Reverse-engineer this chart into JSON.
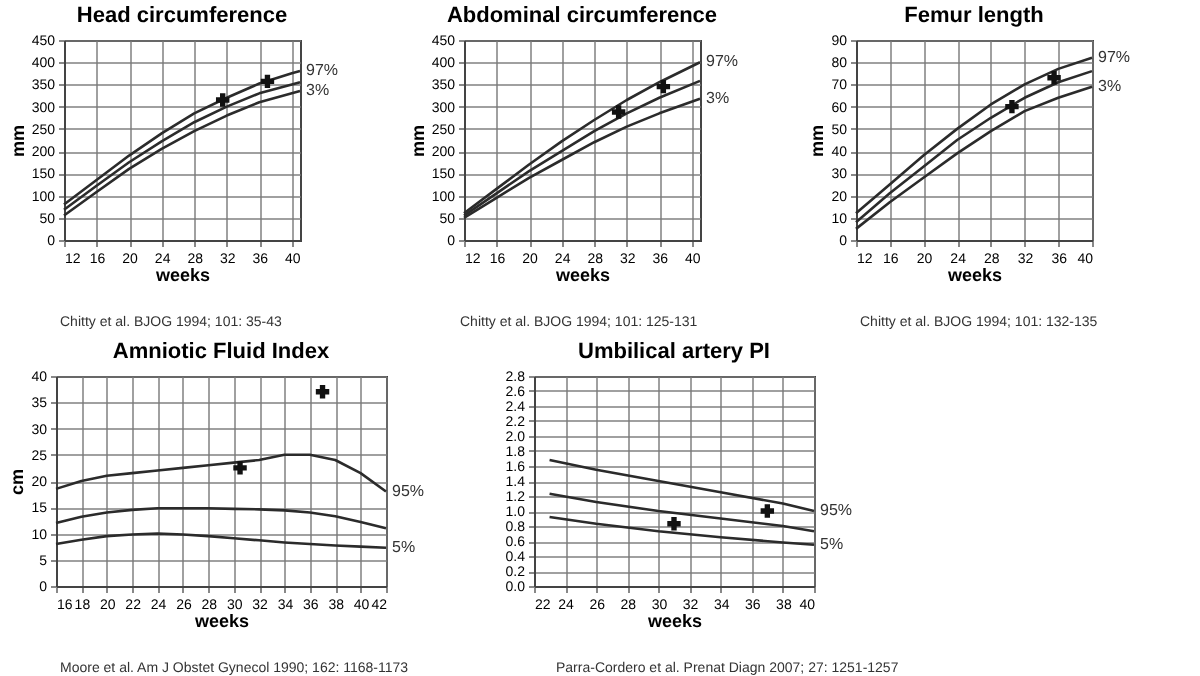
{
  "chart_data": [
    {
      "type": "line",
      "title": "Head circumference",
      "xlabel": "weeks",
      "ylabel": "mm",
      "xlim": [
        12,
        41
      ],
      "xticks": [
        12,
        16,
        20,
        24,
        28,
        32,
        36,
        40
      ],
      "ylim": [
        0,
        450
      ],
      "yticks": [
        0,
        50,
        100,
        150,
        200,
        250,
        300,
        350,
        400,
        450
      ],
      "grid": true,
      "annotations": [
        "Chitty et al. BJOG 1994; 101: 35-43"
      ],
      "series": [
        {
          "name": "97%",
          "color": "#2b2b2b",
          "x": [
            12,
            16,
            20,
            24,
            28,
            32,
            36,
            40,
            41
          ],
          "values": [
            80,
            135,
            190,
            240,
            285,
            320,
            352,
            375,
            380
          ]
        },
        {
          "color": "#2b2b2b",
          "x": [
            12,
            16,
            20,
            24,
            28,
            32,
            36,
            40,
            41
          ],
          "values": [
            68,
            122,
            175,
            222,
            265,
            300,
            330,
            350,
            355
          ]
        },
        {
          "name": "3%",
          "color": "#2b2b2b",
          "x": [
            12,
            16,
            20,
            24,
            28,
            32,
            36,
            40,
            41
          ],
          "values": [
            55,
            108,
            160,
            205,
            245,
            280,
            310,
            330,
            335
          ]
        },
        {
          "type": "scatter",
          "marker": "cross",
          "color": "#111111",
          "x": [
            31.5,
            37
          ],
          "values": [
            315,
            357
          ]
        }
      ]
    },
    {
      "type": "line",
      "title": "Abdominal circumference",
      "xlabel": "weeks",
      "ylabel": "mm",
      "xlim": [
        12,
        41
      ],
      "xticks": [
        12,
        16,
        20,
        24,
        28,
        32,
        36,
        40
      ],
      "ylim": [
        0,
        450
      ],
      "yticks": [
        0,
        50,
        100,
        150,
        200,
        250,
        300,
        350,
        400,
        450
      ],
      "grid": true,
      "annotations": [
        "Chitty et al. BJOG 1994; 101: 125-131"
      ],
      "series": [
        {
          "name": "97%",
          "color": "#2b2b2b",
          "x": [
            12,
            16,
            20,
            24,
            28,
            32,
            36,
            41
          ],
          "values": [
            60,
            115,
            170,
            222,
            270,
            315,
            355,
            400
          ]
        },
        {
          "color": "#2b2b2b",
          "x": [
            12,
            16,
            20,
            24,
            28,
            32,
            36,
            41
          ],
          "values": [
            55,
            105,
            155,
            200,
            245,
            285,
            320,
            358
          ]
        },
        {
          "name": "3%",
          "color": "#2b2b2b",
          "x": [
            12,
            16,
            20,
            24,
            28,
            32,
            36,
            41
          ],
          "values": [
            50,
            95,
            140,
            180,
            220,
            255,
            285,
            318
          ]
        },
        {
          "type": "scatter",
          "marker": "cross",
          "color": "#111111",
          "x": [
            31,
            36.5
          ],
          "values": [
            288,
            345
          ]
        }
      ]
    },
    {
      "type": "line",
      "title": "Femur length",
      "xlabel": "weeks",
      "ylabel": "mm",
      "xlim": [
        12,
        40
      ],
      "xticks": [
        12,
        16,
        20,
        24,
        28,
        32,
        36,
        40
      ],
      "ylim": [
        0,
        90
      ],
      "yticks": [
        0,
        10,
        20,
        30,
        40,
        50,
        60,
        70,
        80,
        90
      ],
      "grid": true,
      "annotations": [
        "Chitty et al. BJOG 1994; 101: 132-135"
      ],
      "series": [
        {
          "name": "97%",
          "color": "#2b2b2b",
          "x": [
            12,
            16,
            20,
            24,
            28,
            32,
            36,
            40
          ],
          "values": [
            12,
            25,
            38,
            50,
            61,
            70,
            77,
            82
          ]
        },
        {
          "color": "#2b2b2b",
          "x": [
            12,
            16,
            20,
            24,
            28,
            32,
            36,
            40
          ],
          "values": [
            8,
            21,
            33,
            45,
            55,
            64,
            71,
            76
          ]
        },
        {
          "name": "3%",
          "color": "#2b2b2b",
          "x": [
            12,
            16,
            20,
            24,
            28,
            32,
            36,
            40
          ],
          "values": [
            5,
            17,
            28,
            39,
            49,
            58,
            64,
            69
          ]
        },
        {
          "type": "scatter",
          "marker": "cross",
          "color": "#111111",
          "x": [
            30.5,
            35.5
          ],
          "values": [
            60,
            73
          ]
        }
      ]
    },
    {
      "type": "line",
      "title": "Amniotic Fluid Index",
      "xlabel": "weeks",
      "ylabel": "cm",
      "xlim": [
        16,
        42
      ],
      "xticks": [
        16,
        18,
        20,
        22,
        24,
        26,
        28,
        30,
        32,
        34,
        36,
        38,
        40,
        42
      ],
      "ylim": [
        0,
        40
      ],
      "yticks": [
        0,
        5,
        10,
        15,
        20,
        25,
        30,
        35,
        40
      ],
      "grid": true,
      "annotations": [
        "Moore et al. Am J Obstet Gynecol 1990; 162: 1168-1173"
      ],
      "series": [
        {
          "name": "95%",
          "color": "#2b2b2b",
          "x": [
            16,
            18,
            20,
            22,
            24,
            26,
            28,
            30,
            32,
            34,
            36,
            38,
            40,
            42
          ],
          "values": [
            18.5,
            20,
            21,
            21.5,
            22,
            22.5,
            23,
            23.5,
            24,
            25,
            25,
            24,
            21.5,
            18
          ]
        },
        {
          "color": "#2b2b2b",
          "x": [
            16,
            18,
            20,
            22,
            24,
            26,
            28,
            30,
            32,
            34,
            36,
            38,
            40,
            42
          ],
          "values": [
            12,
            13.2,
            14,
            14.5,
            14.8,
            14.8,
            14.8,
            14.7,
            14.6,
            14.4,
            14,
            13.3,
            12.2,
            11
          ]
        },
        {
          "name": "5%",
          "color": "#2b2b2b",
          "x": [
            16,
            18,
            20,
            22,
            24,
            26,
            28,
            30,
            32,
            34,
            36,
            38,
            40,
            42
          ],
          "values": [
            8,
            8.8,
            9.5,
            9.8,
            10,
            9.8,
            9.5,
            9.1,
            8.7,
            8.3,
            8,
            7.7,
            7.5,
            7.3
          ]
        },
        {
          "type": "scatter",
          "marker": "cross",
          "color": "#111111",
          "x": [
            30.5,
            37
          ],
          "values": [
            22.5,
            37
          ]
        }
      ]
    },
    {
      "type": "line",
      "title": "Umbilical artery PI",
      "xlabel": "weeks",
      "xlim": [
        22,
        40
      ],
      "xticks": [
        22,
        24,
        26,
        28,
        30,
        32,
        34,
        36,
        38,
        40
      ],
      "ylim": [
        0,
        2.8
      ],
      "yticks": [
        {
          "value": 0,
          "label": "0.0"
        },
        0.2,
        0.4,
        0.6,
        0.8,
        {
          "value": 1,
          "label": "1.0"
        },
        1.2,
        1.4,
        1.6,
        1.8,
        {
          "value": 2,
          "label": "2.0"
        },
        2.2,
        2.4,
        2.6,
        2.8
      ],
      "grid": true,
      "annotations": [
        "Parra-Cordero et al. Prenat Diagn 2007; 27: 1251-1257"
      ],
      "series": [
        {
          "name": "95%",
          "color": "#2b2b2b",
          "x": [
            23,
            26,
            30,
            34,
            38,
            40
          ],
          "values": [
            1.68,
            1.55,
            1.4,
            1.25,
            1.1,
            1.0
          ]
        },
        {
          "color": "#2b2b2b",
          "x": [
            23,
            26,
            30,
            34,
            38,
            40
          ],
          "values": [
            1.23,
            1.12,
            1.0,
            0.9,
            0.8,
            0.73
          ]
        },
        {
          "name": "5%",
          "color": "#2b2b2b",
          "x": [
            23,
            26,
            30,
            34,
            38,
            40
          ],
          "values": [
            0.92,
            0.83,
            0.73,
            0.65,
            0.58,
            0.55
          ]
        },
        {
          "type": "scatter",
          "marker": "cross",
          "color": "#111111",
          "x": [
            31,
            37
          ],
          "values": [
            0.83,
            1.0
          ]
        }
      ]
    }
  ]
}
